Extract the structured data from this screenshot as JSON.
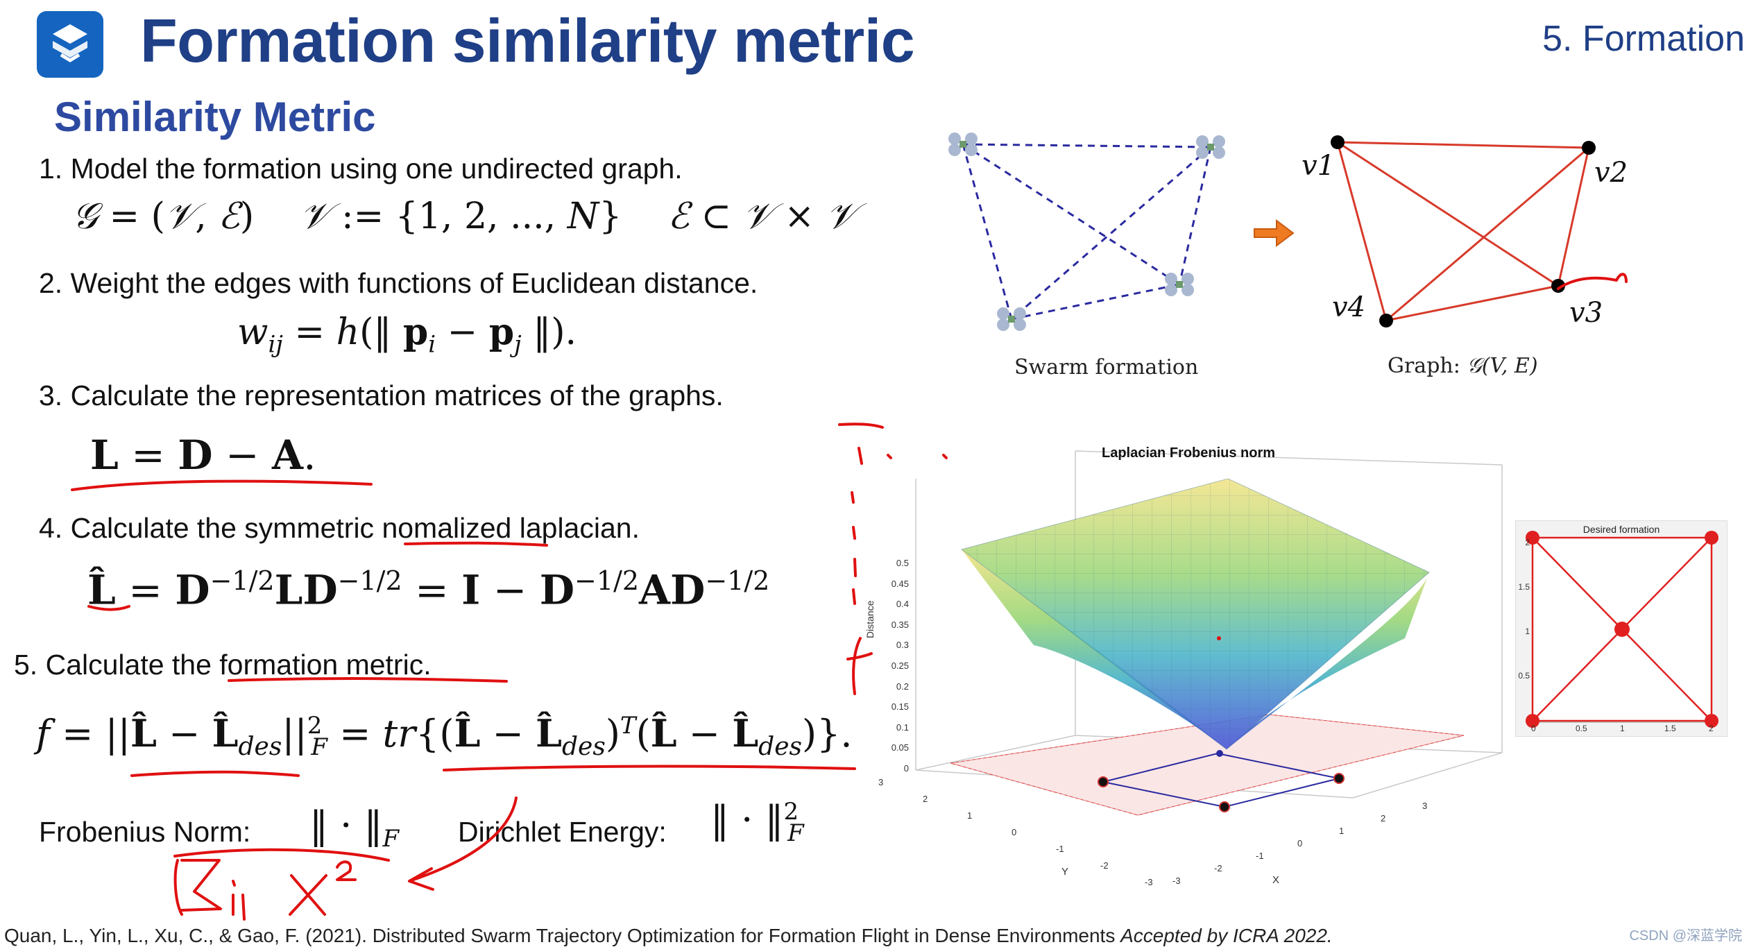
{
  "header": {
    "title": "Formation similarity metric",
    "section": "5. Formation",
    "subtitle": "Similarity Metric"
  },
  "steps": {
    "s1": "1. Model the formation using one undirected graph.",
    "s2": "2. Weight the edges with functions of Euclidean distance.",
    "s3": "3. Calculate the representation matrices of the graphs.",
    "s4_pre": "4. Calculate the symmetric ",
    "s4_ul": "nomalized",
    "s4_post": " laplacian.",
    "s5": "5. Calculate the formation metric."
  },
  "formulas": {
    "frobenius_label": "Frobenius Norm:",
    "dirichlet_label": "Dirichlet Energy:"
  },
  "figure_top": {
    "left_caption": "Swarm formation",
    "right_caption_prefix": "Graph: ",
    "nodes": [
      "v1",
      "v2",
      "v3",
      "v4"
    ]
  },
  "plot3d": {
    "title": "Laplacian Frobenius norm",
    "zlabel": "Distance",
    "xlabel": "X",
    "ylabel": "Y",
    "z_ticks": [
      "0",
      "0.05",
      "0.1",
      "0.15",
      "0.2",
      "0.25",
      "0.3",
      "0.35",
      "0.4",
      "0.45",
      "0.5"
    ],
    "x_ticks": [
      "-3",
      "-2",
      "-1",
      "0",
      "1",
      "2",
      "3"
    ],
    "y_ticks": [
      "-3",
      "-2",
      "-1",
      "0",
      "1",
      "2",
      "3"
    ]
  },
  "desired_plot": {
    "title": "Desired formation",
    "x_ticks": [
      "0",
      "0.5",
      "1",
      "1.5",
      "2"
    ],
    "y_ticks": [
      "0.5",
      "1",
      "1.5",
      "2"
    ]
  },
  "citation": {
    "text": "Quan, L., Yin, L., Xu, C., & Gao, F. (2021). Distributed Swarm Trajectory Optimization for Formation Flight in Dense Environments ",
    "italic": "Accepted by ICRA 2022."
  },
  "watermark": "CSDN @深蓝学院",
  "colors": {
    "title_blue": "#1f3f86",
    "subtitle_blue": "#2d4aa0",
    "annotation_red": "#e01010",
    "graph_edge": "#d73a2a",
    "swarm_edge": "#2a2aa0"
  }
}
